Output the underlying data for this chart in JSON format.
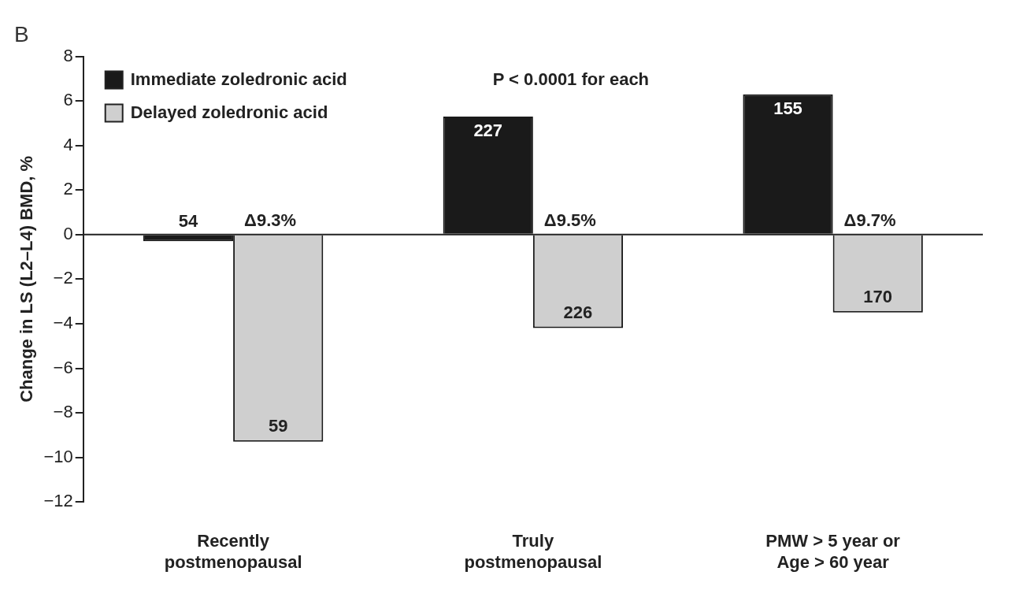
{
  "chart_data": {
    "type": "bar",
    "title": "B",
    "ylabel": "Change in LS (L2–L4) BMD, %",
    "categories": [
      "Recently\npostmenopausal",
      "Truly\npostmenopausal",
      "PMW > 5 year or\nAge > 60 year"
    ],
    "series": [
      {
        "name": "Immediate zoledronic acid",
        "color": "#1a1a1a",
        "values": [
          -0.3,
          5.3,
          6.3
        ]
      },
      {
        "name": "Delayed zoledronic acid",
        "color": "#cfcfcf",
        "values": [
          -9.3,
          -4.2,
          -3.5
        ]
      }
    ],
    "ylim": [
      -12,
      8
    ],
    "yticks": [
      -12,
      -10,
      -8,
      -6,
      -4,
      -2,
      0,
      2,
      4,
      6,
      8
    ],
    "legend": "top left",
    "annotations": [
      "P < 0.0001 for each",
      {
        "text": "54",
        "x": "Recently\npostmenopausal",
        "y": -0.3
      },
      {
        "text": "59",
        "x": "Recently\npostmenopausal",
        "y": -9.3
      },
      {
        "text": "227",
        "x": "Truly\npostmenopausal",
        "y": 5.3
      },
      {
        "text": "226",
        "x": "Truly\npostmenopausal",
        "y": -4.2
      },
      {
        "text": "155",
        "x": "PMW > 5 year or\nAge > 60 year",
        "y": 6.3
      },
      {
        "text": "170",
        "x": "PMW > 5 year or\nAge > 60 year",
        "y": -3.5
      },
      {
        "text": "Δ9.3%",
        "x": "Recently\npostmenopausal",
        "y": 0
      },
      {
        "text": "Δ9.5%",
        "x": "Truly\npostmenopausal",
        "y": 0
      },
      {
        "text": "Δ9.7%",
        "x": "PMW > 5 year or\nAge > 60 year",
        "y": 0
      }
    ]
  }
}
